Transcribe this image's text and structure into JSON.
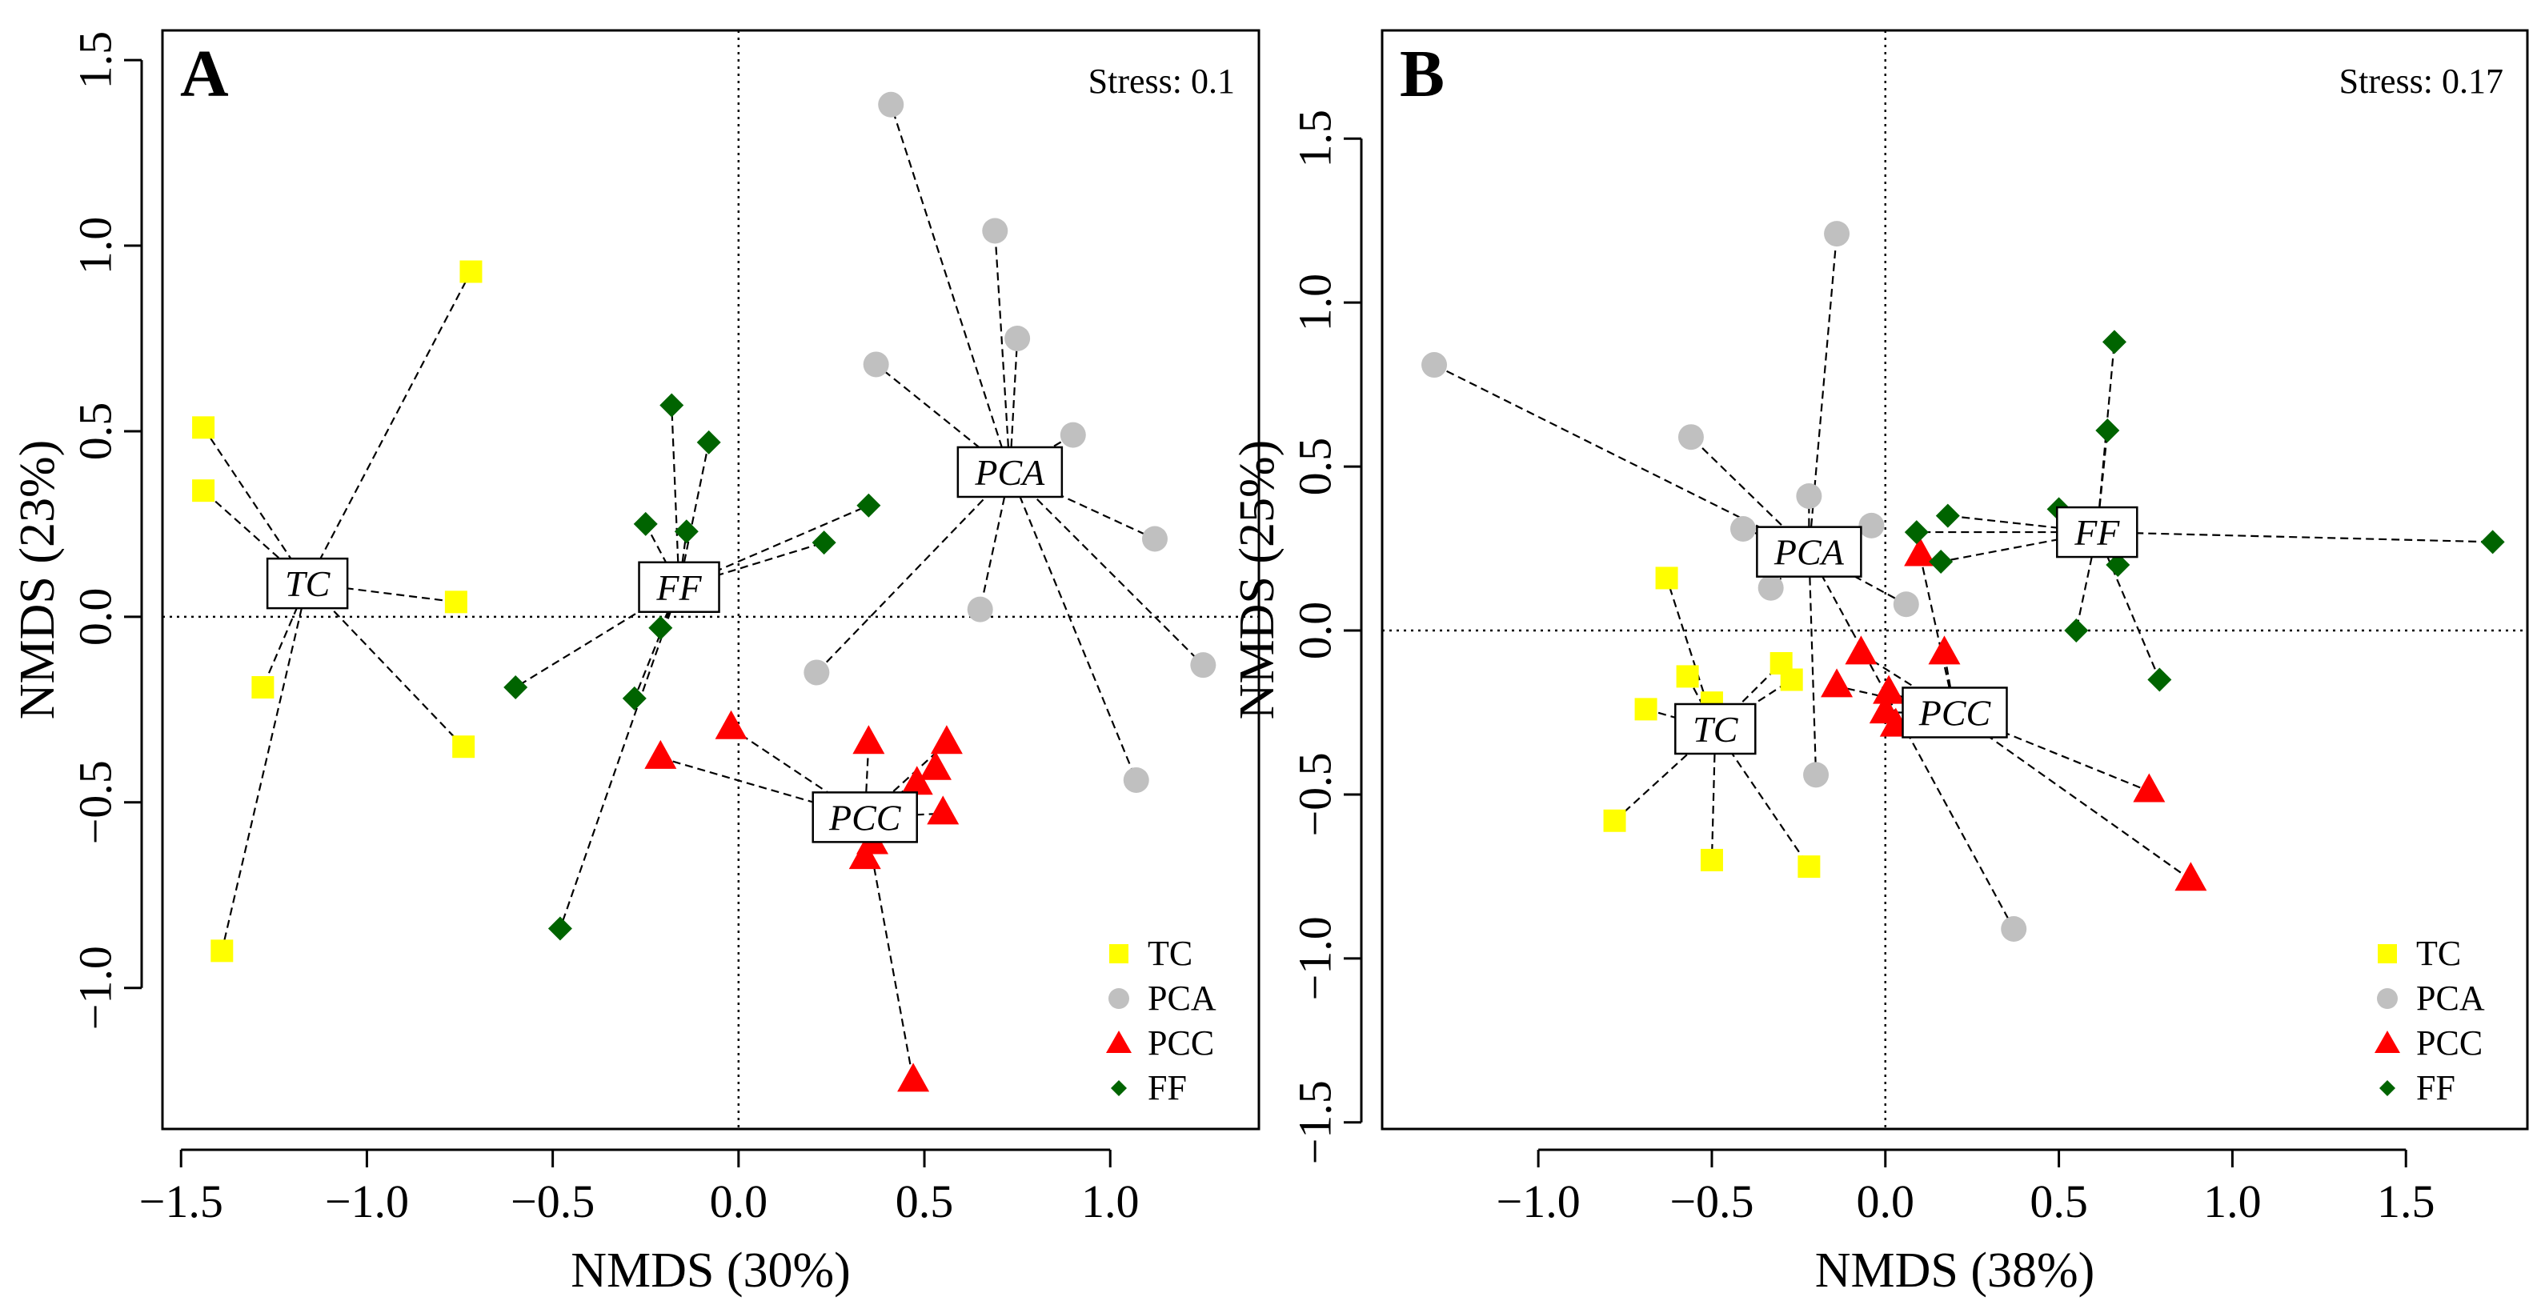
{
  "colors": {
    "TC": "#ffff00",
    "PCA": "#c0c0c0",
    "PCC": "#ff0000",
    "FF": "#006400"
  },
  "chart_data": [
    {
      "type": "scatter",
      "panel": "A",
      "stress": "Stress: 0.1",
      "xlabel": "NMDS (30%)",
      "ylabel": "NMDS (23%)",
      "xlim": [
        -1.55,
        1.4
      ],
      "ylim": [
        -1.38,
        1.58
      ],
      "xticks": [
        -1.5,
        -1.0,
        -0.5,
        0.0,
        0.5,
        1.0
      ],
      "xtick_labels": [
        "−1.5",
        "−1.0",
        "−0.5",
        "0.0",
        "0.5",
        "1.0"
      ],
      "yticks": [
        -1.0,
        -0.5,
        0.0,
        0.5,
        1.0,
        1.5
      ],
      "ytick_labels": [
        "−1.0",
        "−0.5",
        "0.0",
        "0.5",
        "1.0",
        "1.5"
      ],
      "legend": [
        "TC",
        "PCA",
        "PCC",
        "FF"
      ],
      "legend_position": "bottom-right",
      "series": [
        {
          "name": "TC",
          "marker": "square",
          "centroid": [
            -1.16,
            0.09
          ],
          "centroid_label": "TC",
          "points": [
            [
              -0.72,
              0.93
            ],
            [
              -1.44,
              0.51
            ],
            [
              -1.44,
              0.34
            ],
            [
              -0.76,
              0.04
            ],
            [
              -1.28,
              -0.19
            ],
            [
              -0.74,
              -0.35
            ],
            [
              -1.39,
              -0.9
            ]
          ]
        },
        {
          "name": "PCA",
          "marker": "circle",
          "centroid": [
            0.73,
            0.39
          ],
          "centroid_label": "PCA",
          "points": [
            [
              0.41,
              1.38
            ],
            [
              0.69,
              1.04
            ],
            [
              0.75,
              0.75
            ],
            [
              0.37,
              0.68
            ],
            [
              0.9,
              0.49
            ],
            [
              1.12,
              0.21
            ],
            [
              0.65,
              0.02
            ],
            [
              0.21,
              -0.15
            ],
            [
              1.25,
              -0.13
            ],
            [
              1.07,
              -0.44
            ]
          ]
        },
        {
          "name": "PCC",
          "marker": "triangle",
          "centroid": [
            0.34,
            -0.54
          ],
          "centroid_label": "PCC",
          "points": [
            [
              -0.21,
              -0.38
            ],
            [
              -0.02,
              -0.3
            ],
            [
              0.35,
              -0.34
            ],
            [
              0.56,
              -0.34
            ],
            [
              0.53,
              -0.41
            ],
            [
              0.48,
              -0.45
            ],
            [
              0.55,
              -0.53
            ],
            [
              0.36,
              -0.61
            ],
            [
              0.34,
              -0.65
            ],
            [
              0.47,
              -1.25
            ]
          ]
        },
        {
          "name": "FF",
          "marker": "diamond",
          "centroid": [
            -0.16,
            0.08
          ],
          "centroid_label": "FF",
          "points": [
            [
              -0.18,
              0.57
            ],
            [
              -0.08,
              0.47
            ],
            [
              0.35,
              0.3
            ],
            [
              -0.25,
              0.25
            ],
            [
              -0.14,
              0.23
            ],
            [
              0.23,
              0.2
            ],
            [
              -0.21,
              -0.03
            ],
            [
              -0.6,
              -0.19
            ],
            [
              -0.28,
              -0.22
            ],
            [
              -0.48,
              -0.84
            ]
          ]
        }
      ]
    },
    {
      "type": "scatter",
      "panel": "B",
      "stress": "Stress: 0.17",
      "xlabel": "NMDS (38%)",
      "ylabel": "NMDS (25%)",
      "xlim": [
        -1.45,
        1.85
      ],
      "ylim": [
        -1.52,
        1.83
      ],
      "xticks": [
        -1.0,
        -0.5,
        0.0,
        0.5,
        1.0,
        1.5
      ],
      "xtick_labels": [
        "−1.0",
        "−0.5",
        "0.0",
        "0.5",
        "1.0",
        "1.5"
      ],
      "yticks": [
        -1.5,
        -1.0,
        -0.5,
        0.0,
        0.5,
        1.0,
        1.5
      ],
      "ytick_labels": [
        "−1.5",
        "−1.0",
        "−0.5",
        "0.0",
        "0.5",
        "1.0",
        "1.5"
      ],
      "legend": [
        "TC",
        "PCA",
        "PCC",
        "FF"
      ],
      "legend_position": "bottom-right",
      "series": [
        {
          "name": "TC",
          "marker": "square",
          "centroid": [
            -0.49,
            -0.3
          ],
          "centroid_label": "TC",
          "points": [
            [
              -0.63,
              0.16
            ],
            [
              -0.57,
              -0.14
            ],
            [
              -0.69,
              -0.24
            ],
            [
              -0.5,
              -0.22
            ],
            [
              -0.3,
              -0.1
            ],
            [
              -0.27,
              -0.15
            ],
            [
              -0.78,
              -0.58
            ],
            [
              -0.5,
              -0.7
            ],
            [
              -0.22,
              -0.72
            ]
          ]
        },
        {
          "name": "PCA",
          "marker": "circle",
          "centroid": [
            -0.22,
            0.24
          ],
          "centroid_label": "PCA",
          "points": [
            [
              -1.3,
              0.81
            ],
            [
              -0.14,
              1.21
            ],
            [
              -0.56,
              0.59
            ],
            [
              -0.22,
              0.41
            ],
            [
              -0.04,
              0.32
            ],
            [
              -0.26,
              0.25
            ],
            [
              -0.41,
              0.31
            ],
            [
              -0.33,
              0.13
            ],
            [
              0.06,
              0.08
            ],
            [
              -0.2,
              -0.44
            ],
            [
              0.37,
              -0.91
            ]
          ]
        },
        {
          "name": "PCC",
          "marker": "triangle",
          "centroid": [
            0.2,
            -0.25
          ],
          "centroid_label": "PCC",
          "points": [
            [
              0.1,
              0.23
            ],
            [
              -0.07,
              -0.07
            ],
            [
              0.17,
              -0.07
            ],
            [
              -0.14,
              -0.17
            ],
            [
              0.01,
              -0.19
            ],
            [
              0.0,
              -0.25
            ],
            [
              0.03,
              -0.29
            ],
            [
              0.76,
              -0.49
            ],
            [
              0.88,
              -0.76
            ]
          ]
        },
        {
          "name": "FF",
          "marker": "diamond",
          "centroid": [
            0.61,
            0.3
          ],
          "centroid_label": "FF",
          "points": [
            [
              0.66,
              0.88
            ],
            [
              0.64,
              0.61
            ],
            [
              0.5,
              0.37
            ],
            [
              0.09,
              0.3
            ],
            [
              0.18,
              0.35
            ],
            [
              1.75,
              0.27
            ],
            [
              0.16,
              0.21
            ],
            [
              0.67,
              0.2
            ],
            [
              0.55,
              0.0
            ],
            [
              0.79,
              -0.15
            ]
          ]
        }
      ]
    }
  ]
}
